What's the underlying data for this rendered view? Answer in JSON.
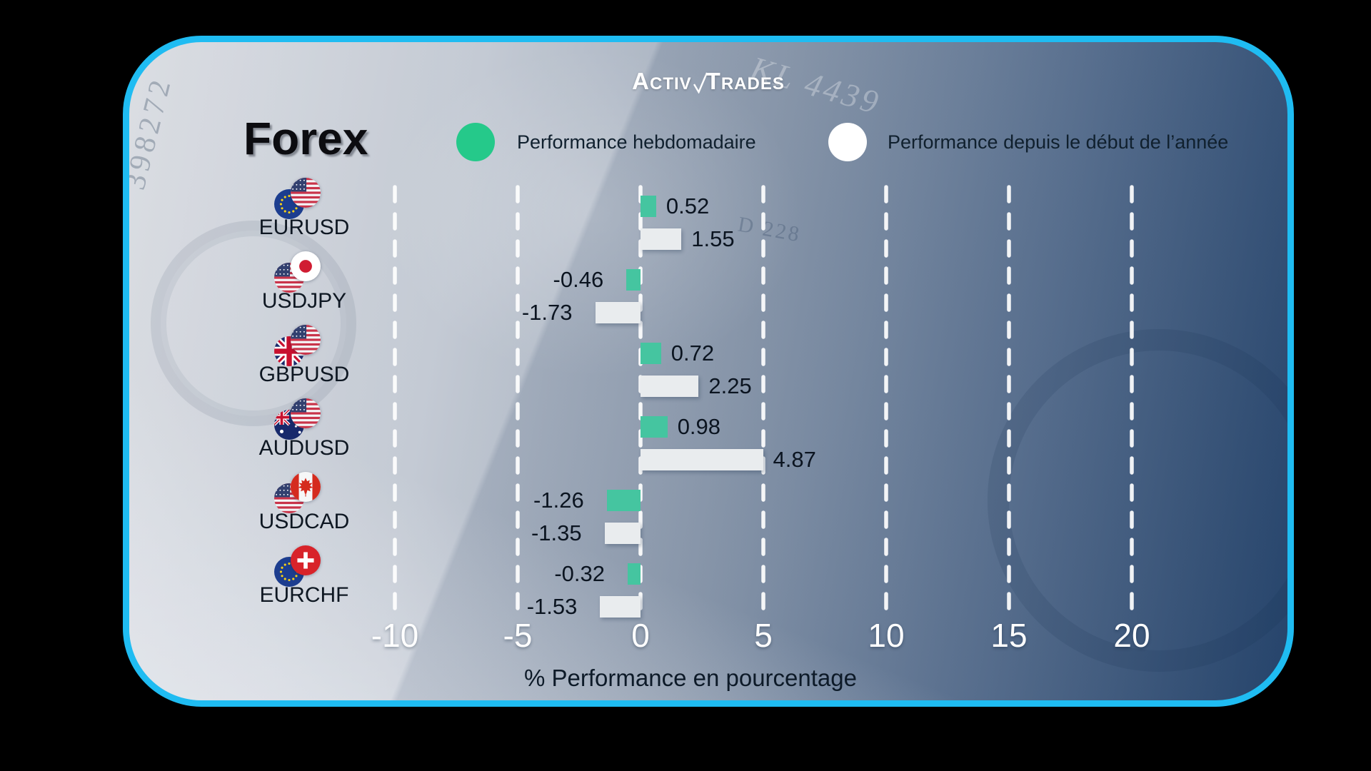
{
  "brand": {
    "name": "ActivTrades",
    "logo_prefix": "Activ",
    "logo_suffix": "Trades"
  },
  "header": {
    "title": "Forex"
  },
  "legend": {
    "weekly": {
      "label": "Performance hebdomadaire",
      "color": "#25c98a"
    },
    "ytd": {
      "label": "Performance depuis le début de l’année",
      "color": "#ffffff"
    }
  },
  "chart_data": {
    "type": "bar",
    "orientation": "horizontal",
    "title": "Forex",
    "categories": [
      "EURUSD",
      "USDJPY",
      "GBPUSD",
      "AUDUSD",
      "USDCAD",
      "EURCHF"
    ],
    "series": [
      {
        "name": "Performance hebdomadaire",
        "color": "#45c5a0",
        "values": [
          0.52,
          -0.46,
          0.72,
          0.98,
          -1.26,
          -0.32
        ]
      },
      {
        "name": "Performance depuis le début de l’année",
        "color": "#e9ecee",
        "values": [
          1.55,
          -1.73,
          2.25,
          4.87,
          -1.35,
          -1.53
        ]
      }
    ],
    "flags": [
      [
        "eu",
        "us"
      ],
      [
        "us",
        "jp"
      ],
      [
        "gb",
        "us"
      ],
      [
        "au",
        "us"
      ],
      [
        "us",
        "ca"
      ],
      [
        "eu",
        "ch"
      ]
    ],
    "x_ticks": [
      -10,
      -5,
      0,
      5,
      10,
      15,
      20
    ],
    "xlim": [
      -12.5,
      22.5
    ],
    "xlabel": "% Performance en pourcentage",
    "grid": "dashed-vertical-white",
    "legend_position": "top"
  },
  "background": {
    "watermarks": [
      "398272",
      "KL 4439",
      "D 228"
    ],
    "border_color": "#1fbcf2"
  }
}
